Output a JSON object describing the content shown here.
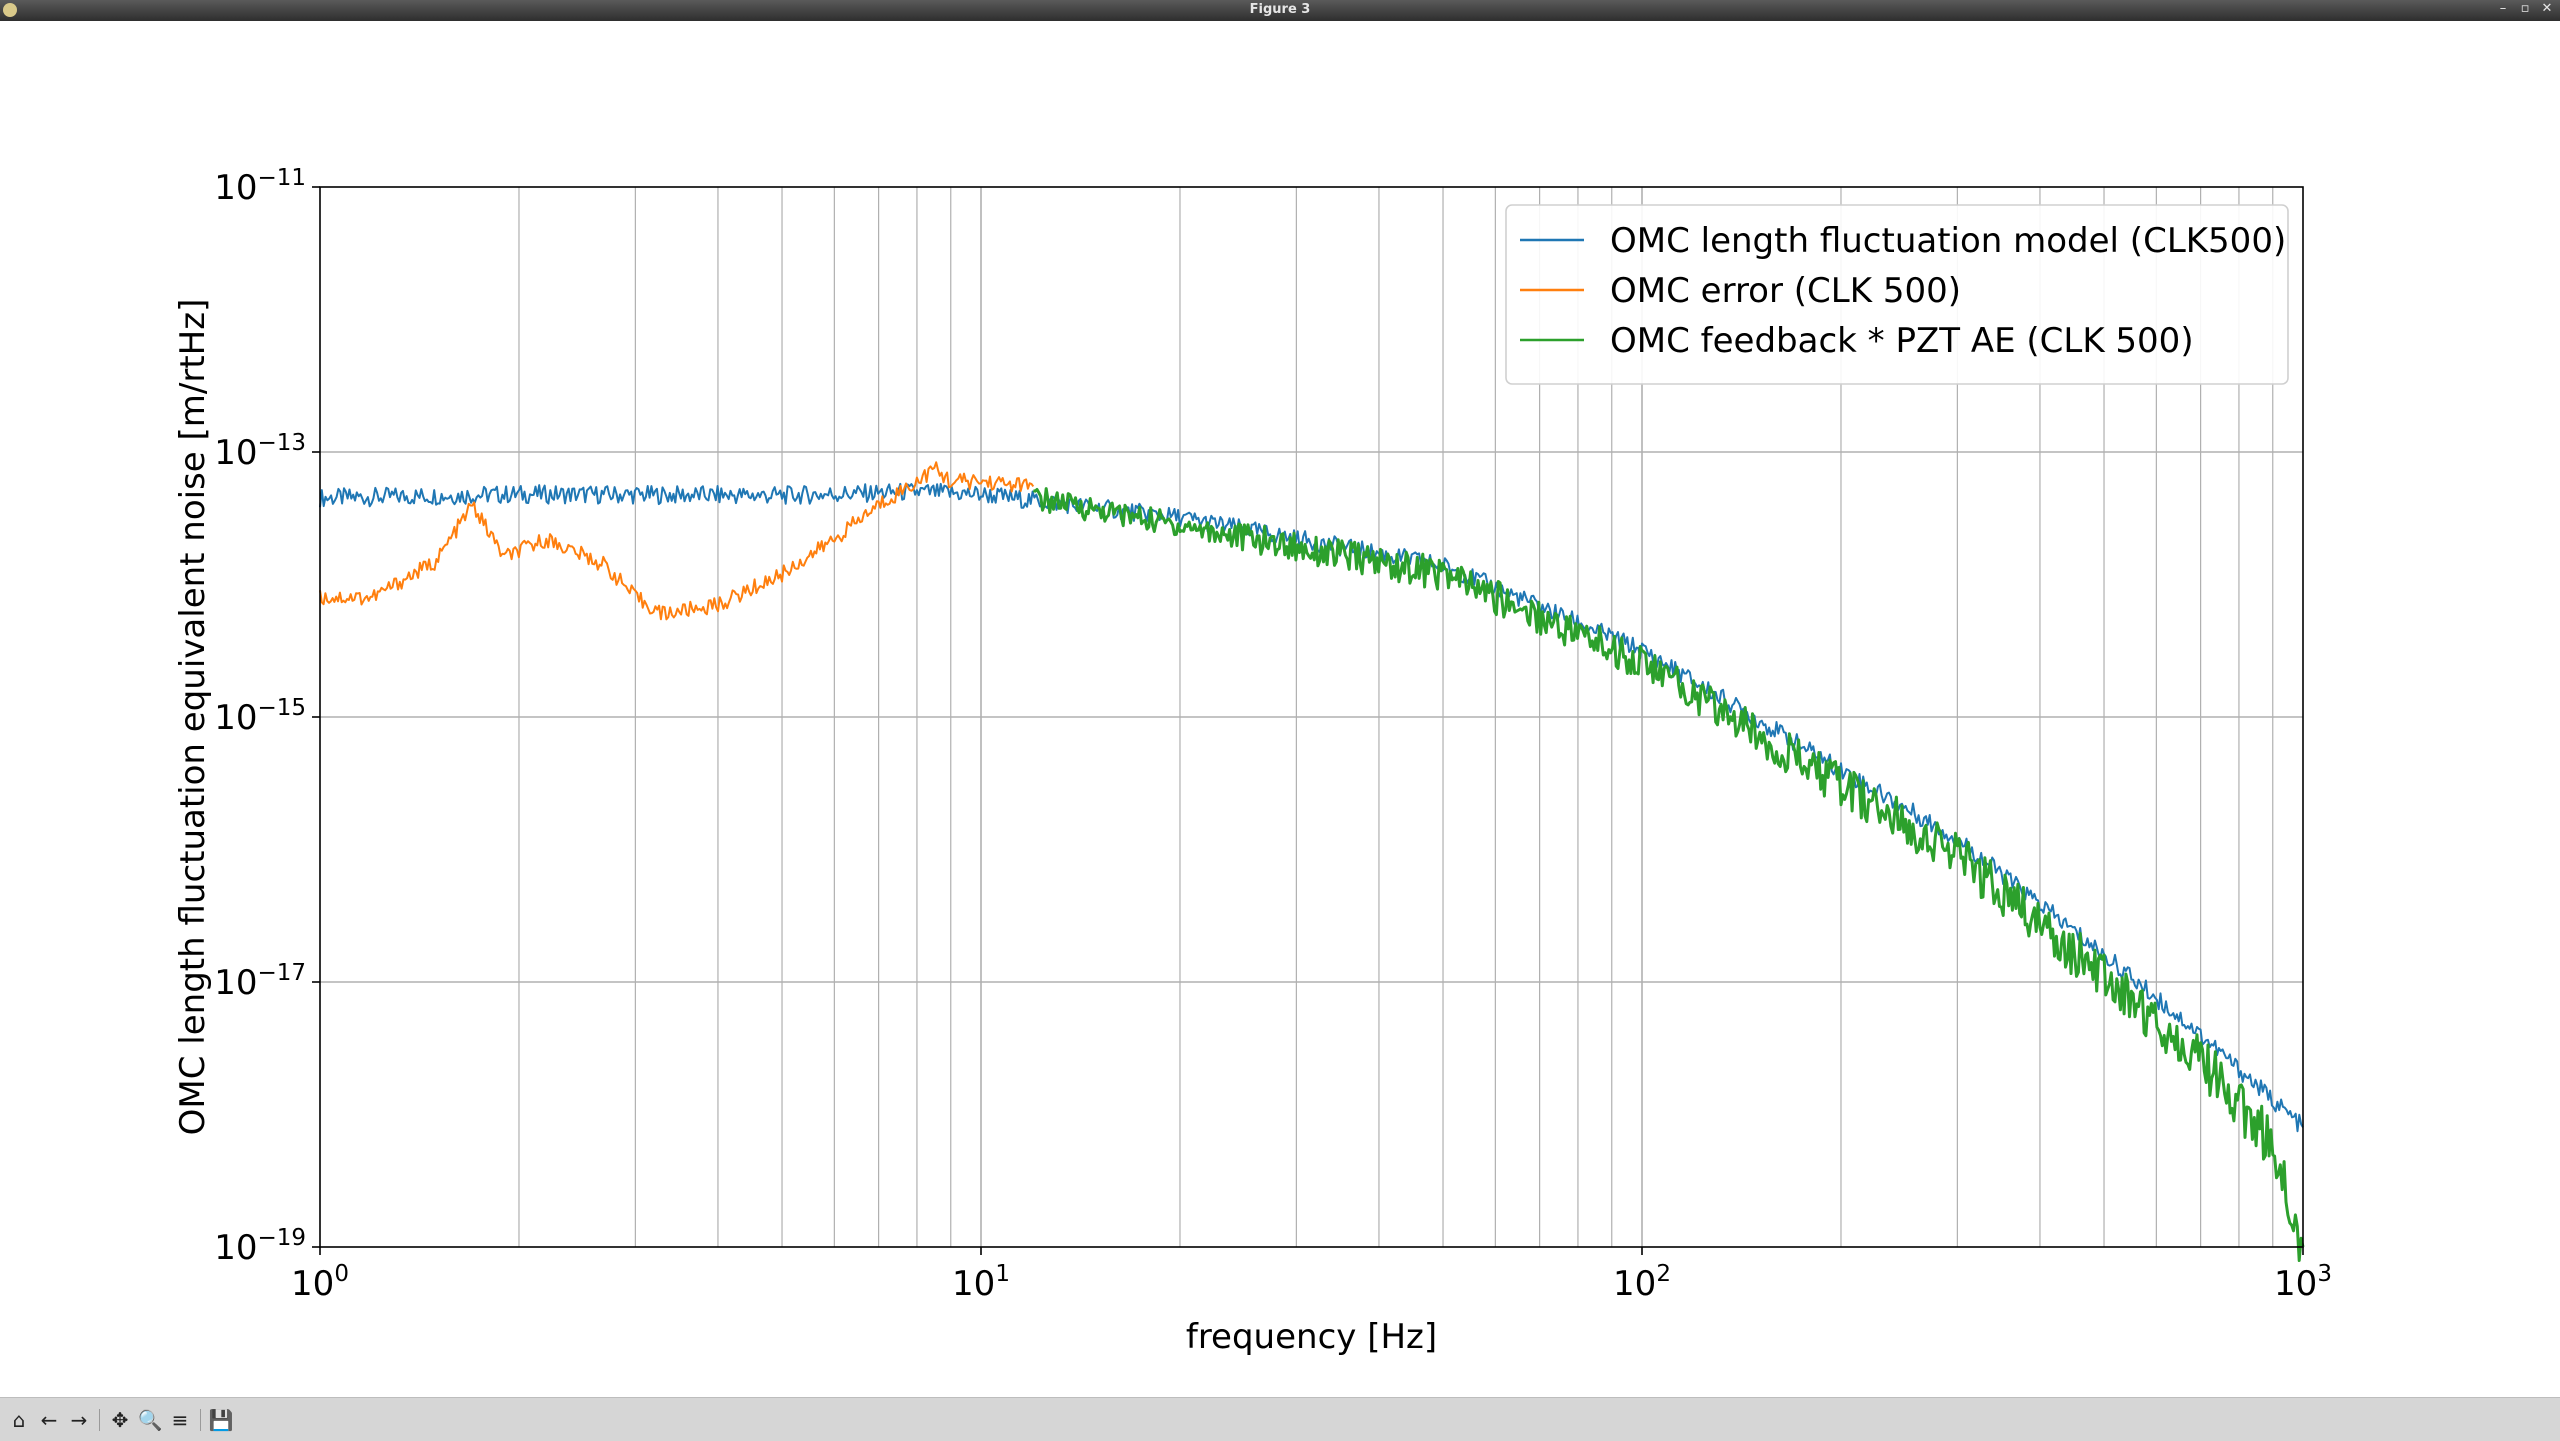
{
  "window": {
    "title": "Figure 3"
  },
  "toolbar": {
    "buttons": [
      {
        "name": "home-icon",
        "glyph": "⌂"
      },
      {
        "name": "back-icon",
        "glyph": "←"
      },
      {
        "name": "forward-icon",
        "glyph": "→"
      },
      {
        "name": "pan-icon",
        "glyph": "✥"
      },
      {
        "name": "zoom-icon",
        "glyph": "🔍"
      },
      {
        "name": "configure-subplots-icon",
        "glyph": "≡"
      },
      {
        "name": "save-icon",
        "glyph": "💾"
      }
    ]
  },
  "chart_data": {
    "type": "line",
    "title": "",
    "xlabel": "frequency [Hz]",
    "ylabel": "OMC length fluctuation equivalent noise [m/rtHz]",
    "xscale": "log",
    "yscale": "log",
    "xlim": [
      1,
      1000
    ],
    "ylim": [
      1e-19,
      1e-11
    ],
    "grid": true,
    "legend_position": "top-right",
    "x_ticks": [
      {
        "base": "10",
        "exp": "0"
      },
      {
        "base": "10",
        "exp": "1"
      },
      {
        "base": "10",
        "exp": "2"
      },
      {
        "base": "10",
        "exp": "3"
      }
    ],
    "y_ticks": [
      {
        "base": "10",
        "exp": "−11"
      },
      {
        "base": "10",
        "exp": "−13"
      },
      {
        "base": "10",
        "exp": "−15"
      },
      {
        "base": "10",
        "exp": "−17"
      },
      {
        "base": "10",
        "exp": "−19"
      }
    ],
    "series": [
      {
        "name": "OMC length fluctuation model (CLK500)",
        "color": "#1f77b4",
        "x": [
          1,
          2,
          5,
          8,
          10,
          20,
          50,
          100,
          200,
          300,
          500,
          700,
          1000
        ],
        "y": [
          4.5e-14,
          4.8e-14,
          4.7e-14,
          5e-14,
          4.8e-14,
          3.2e-14,
          1.4e-14,
          3.2e-15,
          4e-16,
          1.2e-16,
          1.6e-17,
          4e-18,
          8e-19
        ]
      },
      {
        "name": "OMC error (CLK 500)",
        "color": "#ff7f0e",
        "x": [
          1,
          1.2,
          1.5,
          1.7,
          1.9,
          2.2,
          2.7,
          3,
          3.3,
          4,
          5,
          6,
          7,
          8,
          8.5,
          9,
          10,
          12
        ],
        "y": [
          8e-15,
          8e-15,
          1.5e-14,
          4e-14,
          1.6e-14,
          2.2e-14,
          1.4e-14,
          8e-15,
          6e-15,
          7e-15,
          1.2e-14,
          2.2e-14,
          4e-14,
          6e-14,
          7.5e-14,
          6e-14,
          6e-14,
          5.5e-14
        ]
      },
      {
        "name": "OMC feedback * PZT AE (CLK 500)",
        "color": "#2ca02c",
        "x": [
          12,
          20,
          50,
          100,
          200,
          300,
          500,
          700,
          900,
          1000
        ],
        "y": [
          4.5e-14,
          2.8e-14,
          1.2e-14,
          2.6e-15,
          3e-16,
          9e-17,
          1.1e-17,
          2.6e-18,
          6e-19,
          1e-19
        ]
      }
    ]
  }
}
